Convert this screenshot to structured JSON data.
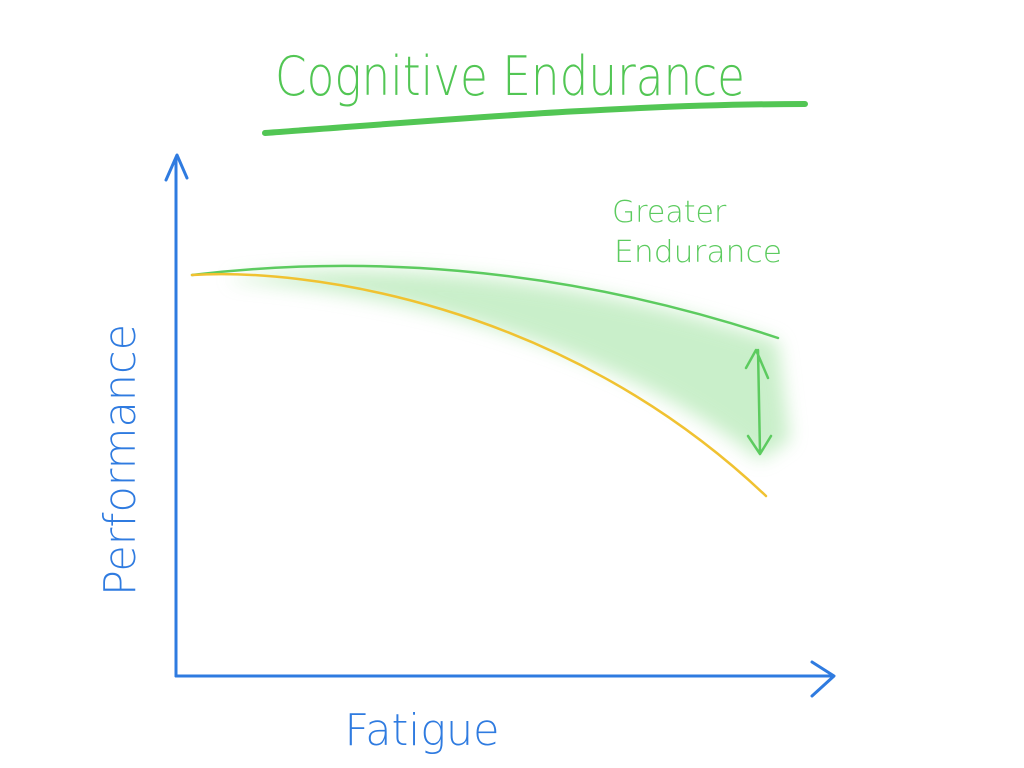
{
  "title": "Cognitive Endurance",
  "axes": {
    "y_label": "Performance",
    "x_label": "Fatigue"
  },
  "annotation": {
    "line1": "Greater",
    "line2": "Endurance"
  },
  "colors": {
    "axes": "#2f7be0",
    "title": "#52c654",
    "greater_endurance_curve": "#5ccb5f",
    "baseline_curve": "#f0c231",
    "shaded_gap": "#9ee29f"
  }
}
